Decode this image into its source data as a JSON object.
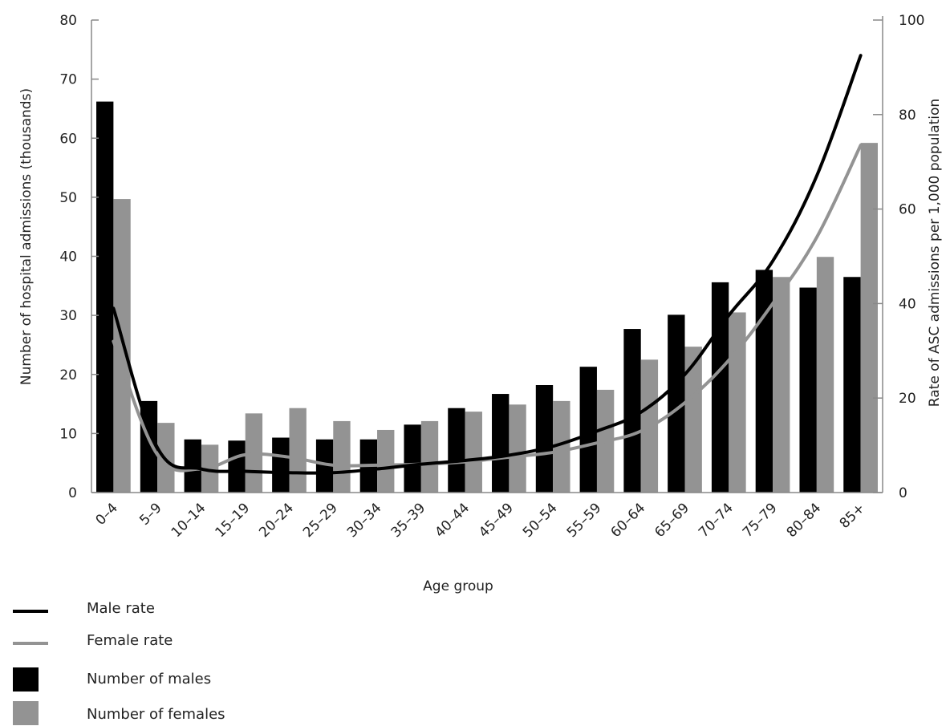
{
  "chart_data": {
    "type": "bar",
    "xlabel": "Age group",
    "ylabel_left": "Number of hospital admissions  (thousands)",
    "ylabel_right": "Rate of ASC admissions per 1,000 population",
    "categories": [
      "0–4",
      "5–9",
      "10–14",
      "15–19",
      "20–24",
      "25–29",
      "30–34",
      "35–39",
      "40–44",
      "45–49",
      "50–54",
      "55–59",
      "60–64",
      "65–69",
      "70–74",
      "75–79",
      "80–84",
      "85+"
    ],
    "ylim_left": [
      0,
      80
    ],
    "yticks_left": [
      0,
      10,
      20,
      30,
      40,
      50,
      60,
      70,
      80
    ],
    "ylim_right": [
      0,
      100
    ],
    "yticks_right": [
      0,
      20,
      40,
      60,
      80,
      100
    ],
    "series": [
      {
        "name": "Number of males",
        "kind": "bar",
        "axis": "left",
        "color": "#000000",
        "values": [
          66.2,
          15.5,
          9.0,
          8.8,
          9.3,
          9.0,
          9.0,
          11.5,
          14.3,
          16.7,
          18.2,
          21.3,
          27.7,
          30.1,
          35.6,
          37.7,
          34.7,
          36.5
        ]
      },
      {
        "name": "Number of females",
        "kind": "bar",
        "axis": "left",
        "color": "#939393",
        "values": [
          49.7,
          11.8,
          8.1,
          13.4,
          14.3,
          12.1,
          10.6,
          12.1,
          13.7,
          14.9,
          15.5,
          17.4,
          22.5,
          24.7,
          30.5,
          36.5,
          39.9,
          59.2
        ]
      },
      {
        "name": "Male rate",
        "kind": "line",
        "axis": "right",
        "color": "#000000",
        "values": [
          39.0,
          9.5,
          5.0,
          4.5,
          4.2,
          4.2,
          5.0,
          6.0,
          6.8,
          7.9,
          9.8,
          13.0,
          17.0,
          25.0,
          37.5,
          49.0,
          67.0,
          92.5
        ]
      },
      {
        "name": "Female rate",
        "kind": "line",
        "axis": "right",
        "color": "#939393",
        "values": [
          32.0,
          8.0,
          5.0,
          8.0,
          7.5,
          5.8,
          5.8,
          6.0,
          6.5,
          7.5,
          8.5,
          10.5,
          13.0,
          19.0,
          28.0,
          40.0,
          54.0,
          73.5
        ]
      }
    ],
    "legend": [
      {
        "label": "Male rate",
        "shape": "line",
        "color": "#000000"
      },
      {
        "label": "Female rate",
        "shape": "line",
        "color": "#939393"
      },
      {
        "label": "Number of males",
        "shape": "box",
        "color": "#000000"
      },
      {
        "label": "Number of females",
        "shape": "box",
        "color": "#939393"
      }
    ],
    "legend_placement": "bottom-left",
    "grid": false
  }
}
